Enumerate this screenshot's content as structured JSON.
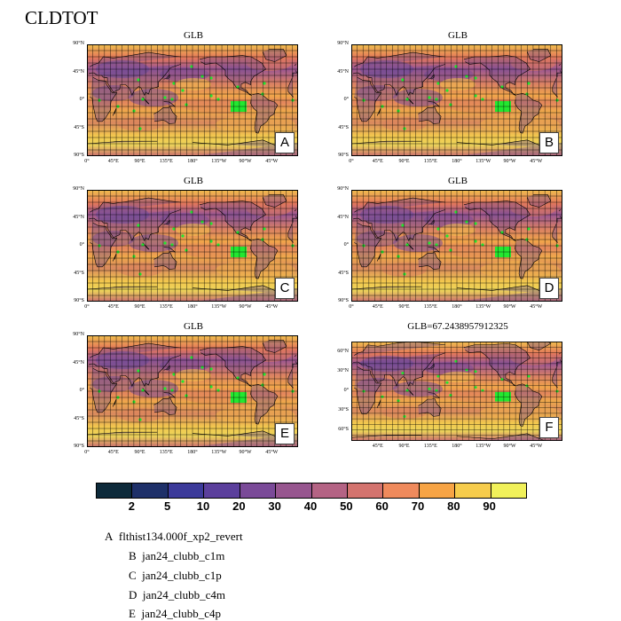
{
  "page_title": "CLDTOT",
  "chart_data": {
    "type": "heatmap",
    "variable": "CLDTOT",
    "panels": [
      {
        "letter": "A",
        "title": "GLB",
        "lat_ticks": [
          "90°N",
          "45°N",
          "0°",
          "45°S",
          "90°S"
        ],
        "lon_ticks": [
          "0°",
          "45°E",
          "90°E",
          "135°E",
          "180°",
          "135°W",
          "90°W",
          "45°W"
        ]
      },
      {
        "letter": "B",
        "title": "GLB",
        "lat_ticks": [
          "90°N",
          "45°N",
          "0°",
          "45°S",
          "90°S"
        ],
        "lon_ticks": [
          "0°",
          "45°E",
          "90°E",
          "135°E",
          "180°",
          "135°W",
          "90°W",
          "45°W"
        ]
      },
      {
        "letter": "C",
        "title": "GLB",
        "lat_ticks": [
          "90°N",
          "45°N",
          "0°",
          "45°S",
          "90°S"
        ],
        "lon_ticks": [
          "0°",
          "45°E",
          "90°E",
          "135°E",
          "180°",
          "135°W",
          "90°W",
          "45°W"
        ]
      },
      {
        "letter": "D",
        "title": "GLB",
        "lat_ticks": [
          "90°N",
          "45°N",
          "0°",
          "45°S",
          "90°S"
        ],
        "lon_ticks": [
          "0°",
          "45°E",
          "90°E",
          "135°E",
          "180°",
          "135°W",
          "90°W",
          "45°W"
        ]
      },
      {
        "letter": "E",
        "title": "GLB",
        "lat_ticks": [
          "90°N",
          "45°N",
          "0°",
          "45°S",
          "90°S"
        ],
        "lon_ticks": [
          "0°",
          "45°E",
          "90°E",
          "135°E",
          "180°",
          "135°W",
          "90°W",
          "45°W"
        ]
      },
      {
        "letter": "F",
        "title": "GLB=67.2438957912325",
        "lat_ticks": [
          "60°N",
          "30°N",
          "0°",
          "30°S",
          "60°S"
        ],
        "lon_ticks": [
          "45°E",
          "90°E",
          "135°E",
          "180°",
          "135°W",
          "90°W",
          "45°W"
        ]
      }
    ],
    "colorbar": {
      "levels": [
        "2",
        "5",
        "10",
        "20",
        "30",
        "40",
        "50",
        "60",
        "70",
        "80",
        "90"
      ],
      "colors": [
        "#0d2a3a",
        "#1e3069",
        "#3c3a9a",
        "#5b3f9c",
        "#7a4a98",
        "#97568f",
        "#b46384",
        "#d3736e",
        "#ef8a5c",
        "#f7a445",
        "#f6cc4c",
        "#f1f15a"
      ]
    }
  },
  "legend": [
    {
      "letter": "A",
      "case": "flthist134.000f_xp2_revert"
    },
    {
      "letter": "B",
      "case": "jan24_clubb_c1m"
    },
    {
      "letter": "C",
      "case": "jan24_clubb_c1p"
    },
    {
      "letter": "D",
      "case": "jan24_clubb_c4m"
    },
    {
      "letter": "E",
      "case": "jan24_clubb_c4p"
    }
  ]
}
